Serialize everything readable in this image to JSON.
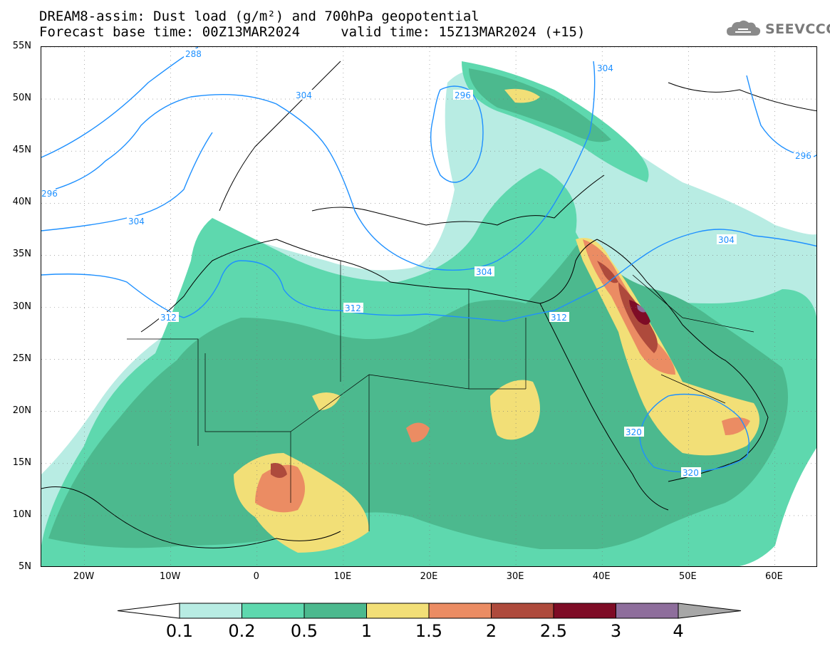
{
  "title": {
    "line1": "DREAM8-assim: Dust load (g/m²) and 700hPa geopotential",
    "line2": "Forecast base time: 00Z13MAR2024     valid time: 15Z13MAR2024 (+15)"
  },
  "logo": {
    "text": "SEEVCCC",
    "icon": "cloud-icon"
  },
  "axes": {
    "lat_labels": [
      "55N",
      "50N",
      "45N",
      "40N",
      "35N",
      "30N",
      "25N",
      "20N",
      "15N",
      "10N",
      "5N"
    ],
    "lat_values": [
      55,
      50,
      45,
      40,
      35,
      30,
      25,
      20,
      15,
      10,
      5
    ],
    "lon_labels": [
      "20W",
      "10W",
      "0",
      "10E",
      "20E",
      "30E",
      "40E",
      "50E",
      "60E"
    ],
    "lon_values": [
      -20,
      -10,
      0,
      10,
      20,
      30,
      40,
      50,
      60
    ],
    "lon_range": [
      -25,
      65
    ],
    "lat_range": [
      5,
      55
    ]
  },
  "colorbar": {
    "labels": [
      "0.1",
      "0.2",
      "0.5",
      "1",
      "1.5",
      "2",
      "2.5",
      "3",
      "4"
    ],
    "colors": [
      "#ffffff",
      "#b8ece3",
      "#5ed8ae",
      "#4cb98e",
      "#f2df77",
      "#eb8c63",
      "#ae4a3c",
      "#7e0c26",
      "#8e6e9c",
      "#a7a7a7"
    ]
  },
  "contours": {
    "color": "#1e90ff",
    "labels": [
      "288",
      "304",
      "304",
      "296",
      "304",
      "296",
      "304",
      "312",
      "312",
      "304",
      "312",
      "296",
      "320",
      "320"
    ]
  }
}
